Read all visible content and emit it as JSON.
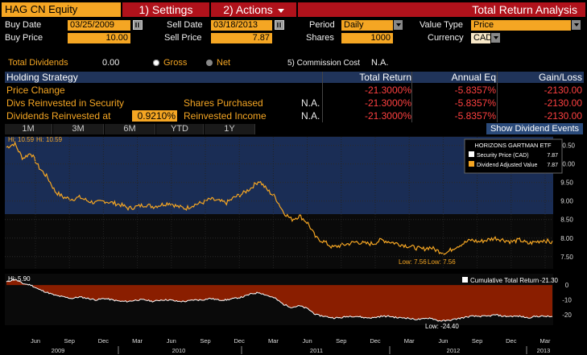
{
  "header": {
    "ticker": "HAG CN Equity",
    "settings_label": "1) Settings",
    "actions_label": "2) Actions",
    "window_title": "Total Return Analysis"
  },
  "form": {
    "buy_date_label": "Buy Date",
    "buy_date": "03/25/2009",
    "sell_date_label": "Sell Date",
    "sell_date": "03/18/2013",
    "period_label": "Period",
    "period": "Daily",
    "value_type_label": "Value Type",
    "value_type": "Price",
    "buy_price_label": "Buy Price",
    "buy_price": "10.00",
    "sell_price_label": "Sell Price",
    "sell_price": "7.87",
    "shares_label": "Shares",
    "shares": "1000",
    "currency_label": "Currency",
    "currency": "CAD",
    "total_dividends_label": "Total Dividends",
    "total_dividends": "0.00",
    "gross_label": "Gross",
    "net_label": "Net",
    "commission_label": "5) Commission Cost",
    "commission": "N.A."
  },
  "table": {
    "headers": [
      "Holding Strategy",
      "Total Return",
      "Annual Eq",
      "Gain/Loss"
    ],
    "rows": [
      {
        "name": "Price Change",
        "extra_label": "",
        "extra_value": "",
        "total": "-21.3000%",
        "annual": "-5.8357%",
        "gain": "-2130.00"
      },
      {
        "name": "Divs Reinvested in Security",
        "extra_label": "Shares Purchased",
        "extra_value": "N.A.",
        "total": "-21.3000%",
        "annual": "-5.8357%",
        "gain": "-2130.00"
      },
      {
        "name": "Dividends Reinvested at",
        "ratio": "0.9210%",
        "extra_label": "Reinvested Income",
        "extra_value": "N.A.",
        "total": "-21.3000%",
        "annual": "-5.8357%",
        "gain": "-2130.00"
      }
    ]
  },
  "tabs": [
    "1M",
    "3M",
    "6M",
    "YTD",
    "1Y"
  ],
  "show_dividend_events": "Show Dividend Events",
  "colors": {
    "accent_orange": "#f5a623",
    "accent_red": "#b0121b",
    "header_blue": "#20345a",
    "line_orange": "#f5a623",
    "fill_red": "#8a1e00"
  },
  "chart_data": [
    {
      "type": "line",
      "title": "HORIZONS GARTMAN ETF",
      "series": [
        {
          "name": "Security Price (CAD)",
          "last": "7.87",
          "values": [
            10.45,
            10.55,
            10.15,
            10.3,
            9.9,
            9.65,
            9.25,
            9.1,
            9.05,
            9.1,
            9.0,
            8.95,
            9.0,
            8.95,
            8.9,
            8.8,
            8.85,
            8.9,
            8.85,
            8.9,
            8.95,
            8.85,
            8.8,
            8.9,
            8.95,
            9.05,
            9.0,
            8.95,
            9.1,
            9.2,
            9.35,
            9.55,
            9.3,
            9.1,
            8.7,
            8.5,
            8.6,
            8.4,
            8.0,
            7.9,
            7.75,
            7.8,
            7.85,
            7.9,
            7.85,
            7.85,
            7.95,
            7.9,
            7.85,
            7.8,
            7.75,
            7.7,
            7.75,
            7.65,
            7.6,
            7.75,
            7.85,
            7.95,
            7.9,
            7.95,
            8.0,
            7.95,
            7.9,
            7.95,
            7.85,
            7.9,
            7.95,
            7.87
          ]
        },
        {
          "name": "Dividend Adjusted Value",
          "last": "7.87",
          "values": [
            10.45,
            10.55,
            10.15,
            10.3,
            9.9,
            9.65,
            9.25,
            9.1,
            9.05,
            9.1,
            9.0,
            8.95,
            9.0,
            8.95,
            8.9,
            8.8,
            8.85,
            8.9,
            8.85,
            8.9,
            8.95,
            8.85,
            8.8,
            8.9,
            8.95,
            9.05,
            9.0,
            8.95,
            9.1,
            9.2,
            9.35,
            9.55,
            9.3,
            9.1,
            8.7,
            8.5,
            8.6,
            8.4,
            8.0,
            7.9,
            7.75,
            7.8,
            7.85,
            7.9,
            7.85,
            7.85,
            7.95,
            7.9,
            7.85,
            7.8,
            7.75,
            7.7,
            7.75,
            7.65,
            7.6,
            7.75,
            7.85,
            7.95,
            7.9,
            7.95,
            8.0,
            7.95,
            7.9,
            7.95,
            7.85,
            7.9,
            7.95,
            7.87
          ]
        }
      ],
      "hi_label": "Hi: 10.59",
      "hi_label2": "Hi: 10.59",
      "low_label": "Low: 7.56",
      "low_label2": "Low: 7.56",
      "yticks": [
        "10.50",
        "10.00",
        "9.50",
        "9.00",
        "8.50",
        "8.00",
        "7.50"
      ],
      "ylim": [
        7.3,
        10.6
      ]
    },
    {
      "type": "area",
      "series": [
        {
          "name": "Cumulative Total Return",
          "last": "-21.30",
          "values": [
            2,
            4,
            1,
            0,
            -3,
            -5,
            -7,
            -8,
            -9,
            -8,
            -9,
            -10,
            -9,
            -10,
            -11,
            -11,
            -10,
            -10,
            -11,
            -10,
            -10,
            -11,
            -11,
            -10,
            -10,
            -9,
            -10,
            -10,
            -9,
            -8,
            -6,
            -5,
            -7,
            -9,
            -13,
            -15,
            -14,
            -16,
            -20,
            -21,
            -22,
            -22,
            -21,
            -21,
            -22,
            -22,
            -21,
            -21,
            -22,
            -22,
            -23,
            -23,
            -22,
            -24,
            -24,
            -23,
            -22,
            -21,
            -21,
            -21,
            -20,
            -21,
            -21,
            -21,
            -22,
            -21,
            -21,
            -21.3
          ]
        }
      ],
      "hi_label": "Hi: 5.90",
      "low_label": "Low: -24.40",
      "yticks": [
        "0",
        "-10",
        "-20"
      ],
      "ylim": [
        -27,
        6
      ]
    }
  ],
  "xaxis": {
    "months": [
      "Jun",
      "Sep",
      "Dec",
      "Mar",
      "Jun",
      "Sep",
      "Dec",
      "Mar",
      "Jun",
      "Sep",
      "Dec",
      "Mar",
      "Jun",
      "Sep",
      "Dec",
      "Mar"
    ],
    "years": [
      "2009",
      "2010",
      "2011",
      "2012",
      "2013"
    ]
  }
}
